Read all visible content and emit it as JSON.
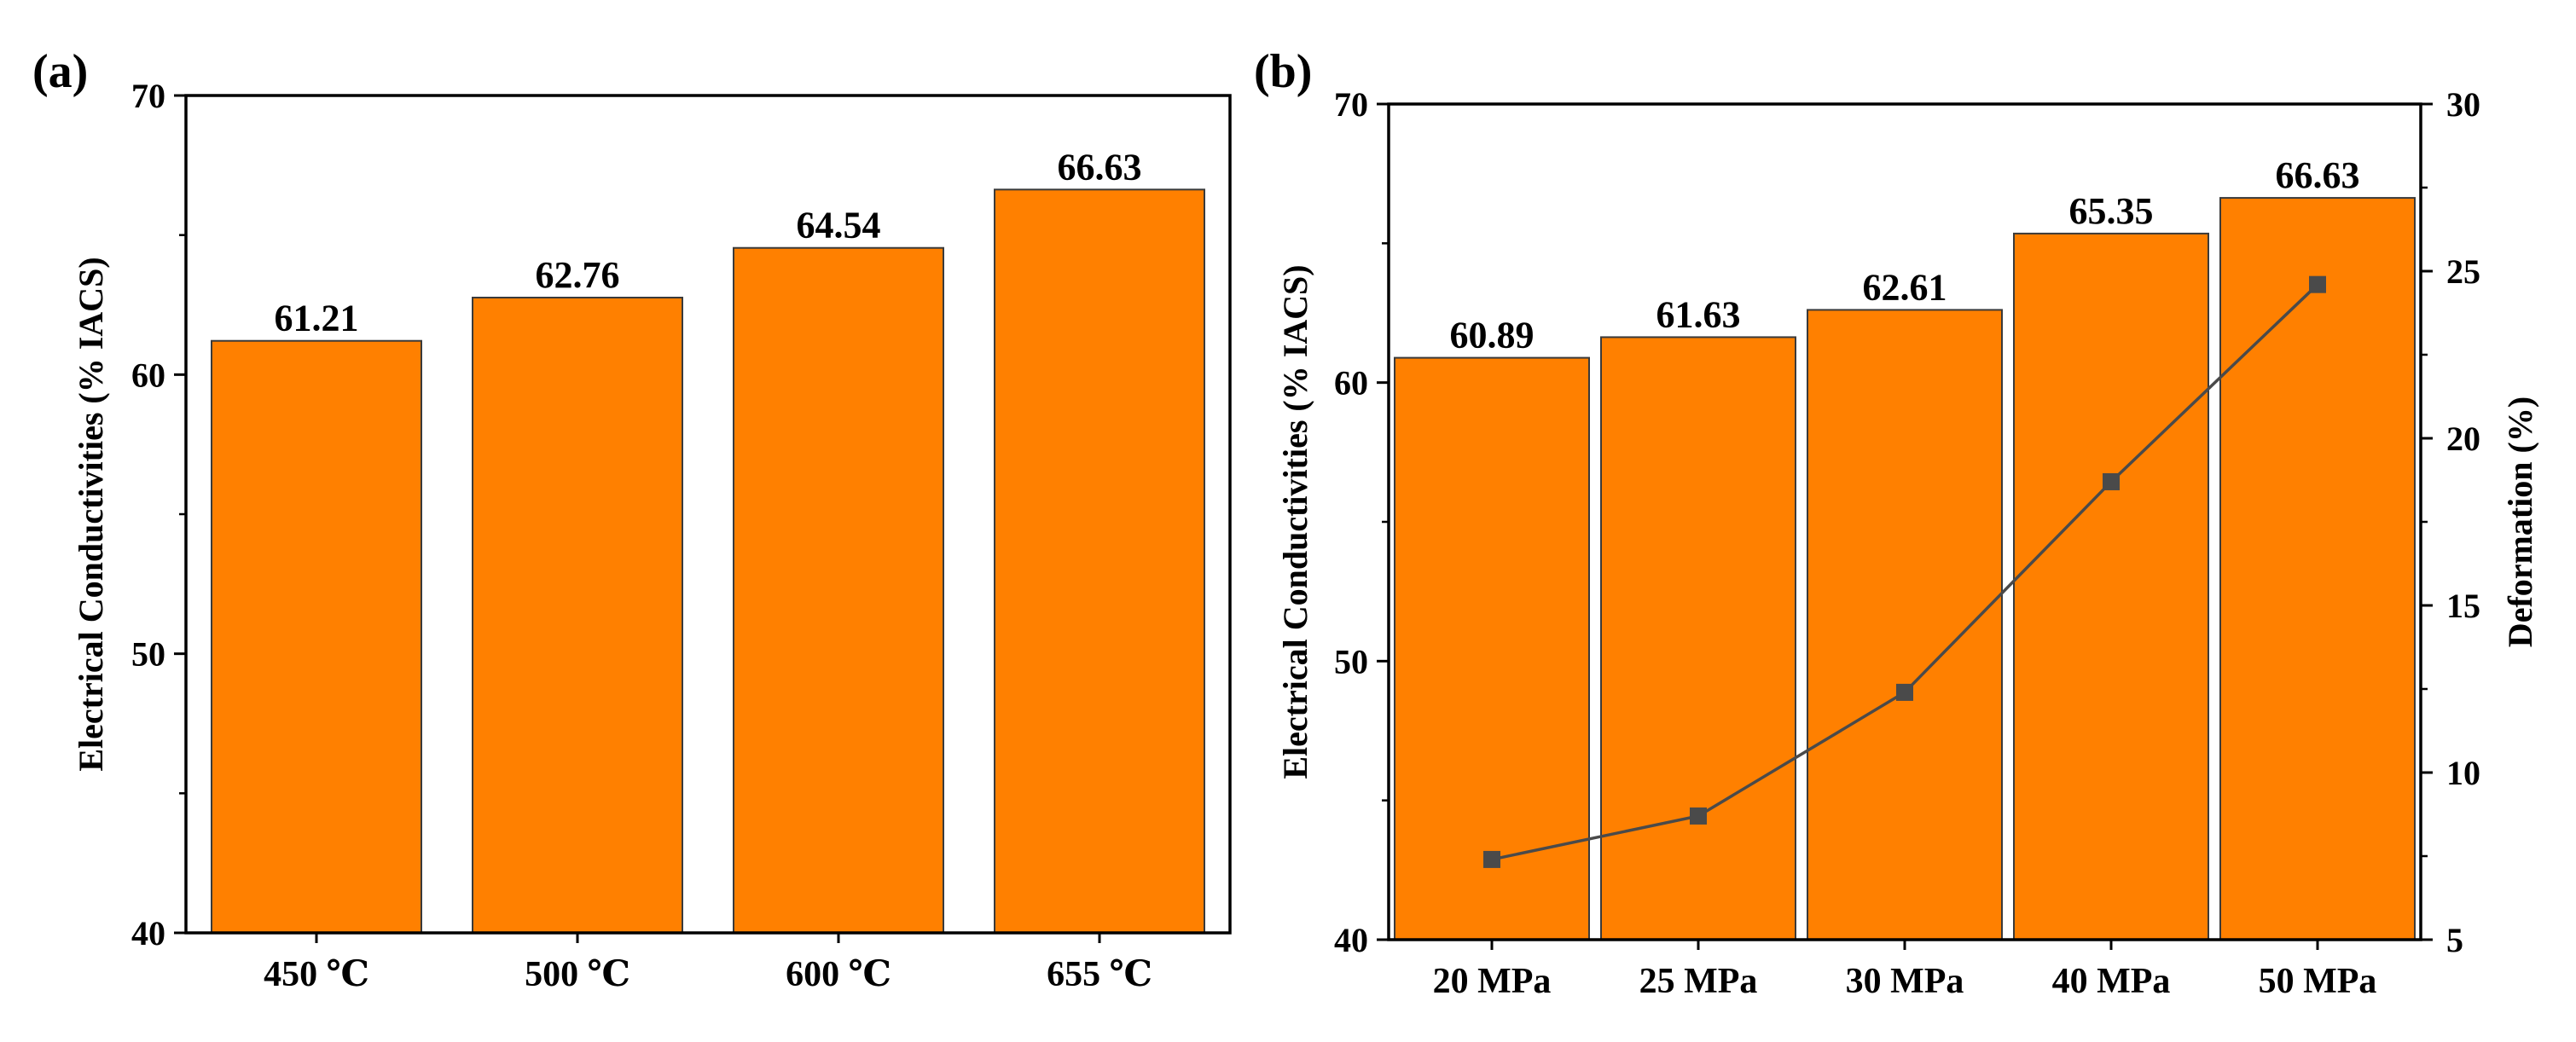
{
  "chart_data": [
    {
      "panel_label": "(a)",
      "type": "bar",
      "categories": [
        "450 ℃",
        "500 ℃",
        "600 ℃",
        "655 ℃"
      ],
      "values": [
        61.21,
        62.76,
        64.54,
        66.63
      ],
      "value_labels": [
        "61.21",
        "62.76",
        "64.54",
        "66.63"
      ],
      "xlabel": "",
      "ylabel": "Electrical Conductivities (% IACS)",
      "ylim": [
        40,
        70
      ],
      "yticks": [
        "40",
        "50",
        "60",
        "70"
      ],
      "bar_color": "#FF8000",
      "grid": false
    },
    {
      "panel_label": "(b)",
      "type": "bar",
      "categories": [
        "20 MPa",
        "25 MPa",
        "30 MPa",
        "40 MPa",
        "50 MPa"
      ],
      "values": [
        60.89,
        61.63,
        62.61,
        65.35,
        66.63
      ],
      "value_labels": [
        "60.89",
        "61.63",
        "62.61",
        "65.35",
        "66.63"
      ],
      "xlabel": "",
      "ylabel": "Electrical Conductivities (% IACS)",
      "ylim": [
        40,
        70
      ],
      "yticks": [
        "40",
        "50",
        "60",
        "70"
      ],
      "y2label": "Deformation (%)",
      "y2lim": [
        5,
        30
      ],
      "y2ticks": [
        "5",
        "10",
        "15",
        "20",
        "25",
        "30"
      ],
      "bar_color": "#FF8000",
      "line_color": "#4a4a4a",
      "line_series": {
        "axis": "right",
        "marker": "square",
        "values": [
          7.4,
          8.7,
          12.4,
          18.7,
          24.6
        ]
      },
      "grid": false
    }
  ]
}
